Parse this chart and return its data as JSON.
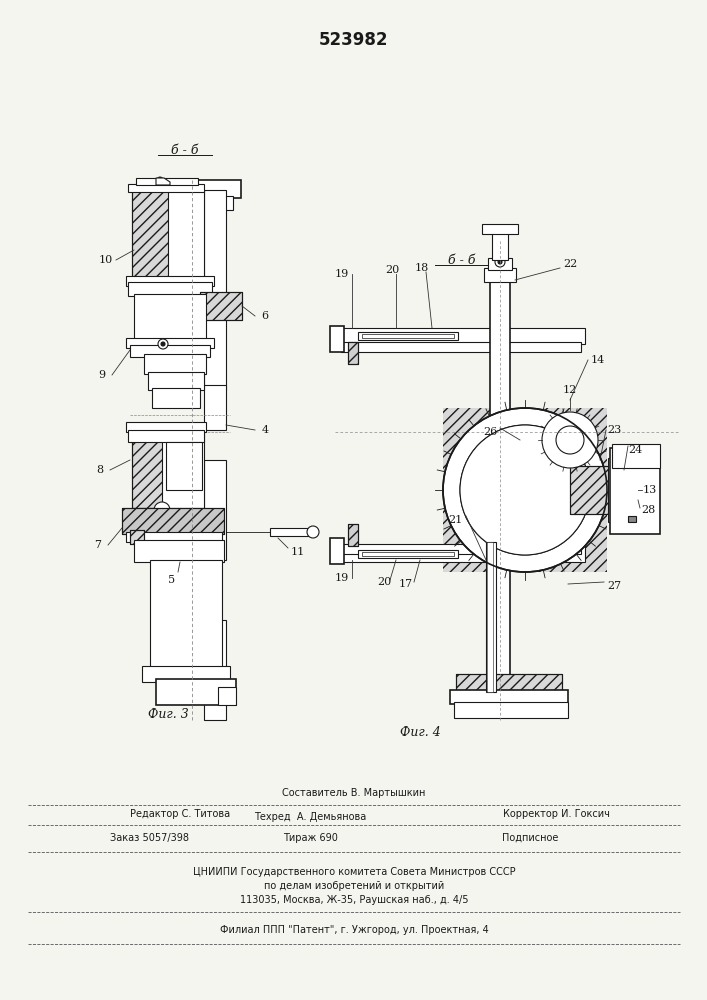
{
  "patent_number": "523982",
  "fig3_label": "Фиг. 3",
  "fig4_label": "Фиг. 4",
  "section_bb": "б - б",
  "background_color": "#f5f5f0",
  "line_color": "#1a1a1a",
  "footer_lines": [
    "Составитель В. Мартышкин",
    "Редактор С. Титова",
    "Техред  А. Демьянова",
    "Корректор И. Гоксич",
    "Заказ 5057/398",
    "Тираж 690",
    "Подписное",
    "ЦНИИПИ Государственного комитета Совета Министров СССР",
    "по делам изобретений и открытий",
    "113035, Москва, Ж-35, Раушская наб., д. 4/5",
    "Филиал ППП \"Патент\", г. Ужгород, ул. Проектная, 4"
  ]
}
